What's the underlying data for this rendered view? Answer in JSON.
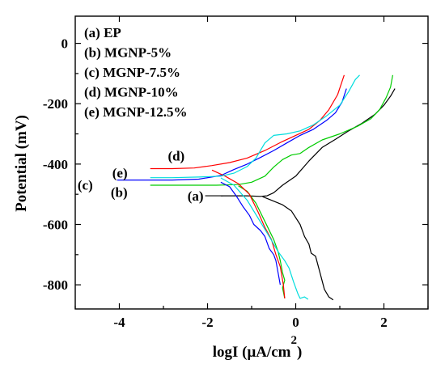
{
  "chart_data": {
    "type": "line",
    "title": "",
    "xlabel": "logI (μA/cm",
    "xlabel_superscript": "2",
    "xlabel_close": ")",
    "ylabel": "Potential (mV)",
    "xlim": [
      -5,
      3
    ],
    "ylim": [
      -880,
      90
    ],
    "x_ticks": [
      {
        "value": -4,
        "label": "-4"
      },
      {
        "value": -2,
        "label": "-2"
      },
      {
        "value": 0,
        "label": "0"
      },
      {
        "value": 2,
        "label": "2"
      }
    ],
    "y_ticks": [
      {
        "value": 0,
        "label": "0"
      },
      {
        "value": -200,
        "label": "-200"
      },
      {
        "value": -400,
        "label": "-400"
      },
      {
        "value": -600,
        "label": "-600"
      },
      {
        "value": -800,
        "label": "-800"
      }
    ],
    "grid": false,
    "legend_position": "top-left",
    "legend": [
      "(a) EP",
      "(b) MGNP-5%",
      "(c) MGNP-7.5%",
      "(d) MGNP-10%",
      "(e) MGNP-12.5%"
    ],
    "series": [
      {
        "label": "(a)",
        "color": "#000000",
        "points": [
          [
            -1.7,
            -505
          ],
          [
            -1.4,
            -505
          ],
          [
            -1.1,
            -505
          ],
          [
            -0.8,
            -507
          ],
          [
            -0.65,
            -505
          ],
          [
            -0.5,
            -495
          ],
          [
            -0.3,
            -470
          ],
          [
            0.0,
            -440
          ],
          [
            0.3,
            -390
          ],
          [
            0.6,
            -345
          ],
          [
            0.9,
            -318
          ],
          [
            1.2,
            -290
          ],
          [
            1.5,
            -265
          ],
          [
            1.8,
            -235
          ],
          [
            2.0,
            -205
          ],
          [
            2.15,
            -175
          ],
          [
            2.25,
            -150
          ]
        ],
        "points_cathodic": [
          [
            -0.75,
            -508
          ],
          [
            -0.55,
            -520
          ],
          [
            -0.3,
            -535
          ],
          [
            -0.1,
            -555
          ],
          [
            0.1,
            -600
          ],
          [
            0.2,
            -640
          ],
          [
            0.3,
            -665
          ],
          [
            0.35,
            -695
          ],
          [
            0.45,
            -705
          ],
          [
            0.55,
            -760
          ],
          [
            0.65,
            -815
          ],
          [
            0.75,
            -840
          ],
          [
            0.85,
            -850
          ]
        ]
      },
      {
        "label": "(b)",
        "color": "#00cc00",
        "points": [
          [
            -3.3,
            -470
          ],
          [
            -2.8,
            -470
          ],
          [
            -2.2,
            -470
          ],
          [
            -1.8,
            -470
          ],
          [
            -1.3,
            -468
          ],
          [
            -1.0,
            -460
          ],
          [
            -0.7,
            -440
          ],
          [
            -0.5,
            -410
          ],
          [
            -0.3,
            -385
          ],
          [
            -0.1,
            -370
          ],
          [
            0.1,
            -365
          ],
          [
            0.3,
            -345
          ],
          [
            0.6,
            -320
          ],
          [
            1.0,
            -300
          ],
          [
            1.4,
            -275
          ],
          [
            1.7,
            -250
          ],
          [
            1.9,
            -220
          ],
          [
            2.05,
            -180
          ],
          [
            2.15,
            -145
          ],
          [
            2.2,
            -105
          ]
        ],
        "points_cathodic": [
          [
            -1.3,
            -472
          ],
          [
            -1.1,
            -490
          ],
          [
            -0.9,
            -530
          ],
          [
            -0.7,
            -590
          ],
          [
            -0.5,
            -650
          ],
          [
            -0.4,
            -690
          ],
          [
            -0.35,
            -720
          ],
          [
            -0.3,
            -760
          ],
          [
            -0.25,
            -785
          ],
          [
            -0.3,
            -810
          ],
          [
            -0.25,
            -845
          ]
        ]
      },
      {
        "label": "(c)",
        "color": "#0000ff",
        "points": [
          [
            -4.05,
            -453
          ],
          [
            -3.5,
            -453
          ],
          [
            -2.8,
            -453
          ],
          [
            -2.2,
            -450
          ],
          [
            -1.7,
            -438
          ],
          [
            -1.4,
            -418
          ],
          [
            -1.1,
            -400
          ],
          [
            -0.8,
            -378
          ],
          [
            -0.5,
            -355
          ],
          [
            -0.2,
            -330
          ],
          [
            0.1,
            -305
          ],
          [
            0.4,
            -285
          ],
          [
            0.7,
            -255
          ],
          [
            0.9,
            -230
          ],
          [
            1.05,
            -195
          ],
          [
            1.15,
            -150
          ]
        ],
        "points_cathodic": [
          [
            -1.7,
            -460
          ],
          [
            -1.5,
            -475
          ],
          [
            -1.35,
            -505
          ],
          [
            -1.2,
            -540
          ],
          [
            -1.05,
            -570
          ],
          [
            -0.95,
            -600
          ],
          [
            -0.8,
            -620
          ],
          [
            -0.7,
            -640
          ],
          [
            -0.6,
            -680
          ],
          [
            -0.5,
            -700
          ],
          [
            -0.45,
            -720
          ],
          [
            -0.4,
            -760
          ],
          [
            -0.35,
            -800
          ]
        ]
      },
      {
        "label": "(d)",
        "color": "#ff0000",
        "points": [
          [
            -3.3,
            -415
          ],
          [
            -2.8,
            -415
          ],
          [
            -2.3,
            -413
          ],
          [
            -1.9,
            -405
          ],
          [
            -1.5,
            -395
          ],
          [
            -1.1,
            -380
          ],
          [
            -0.7,
            -355
          ],
          [
            -0.3,
            -325
          ],
          [
            0.0,
            -305
          ],
          [
            0.3,
            -285
          ],
          [
            0.55,
            -255
          ],
          [
            0.75,
            -220
          ],
          [
            0.95,
            -170
          ],
          [
            1.1,
            -105
          ]
        ],
        "points_cathodic": [
          [
            -1.9,
            -420
          ],
          [
            -1.6,
            -440
          ],
          [
            -1.3,
            -465
          ],
          [
            -1.05,
            -500
          ],
          [
            -0.85,
            -560
          ],
          [
            -0.7,
            -610
          ],
          [
            -0.55,
            -650
          ],
          [
            -0.45,
            -700
          ],
          [
            -0.35,
            -740
          ],
          [
            -0.28,
            -800
          ],
          [
            -0.25,
            -845
          ]
        ]
      },
      {
        "label": "(e)",
        "color": "#00dddd",
        "points": [
          [
            -3.3,
            -445
          ],
          [
            -2.8,
            -445
          ],
          [
            -2.2,
            -443
          ],
          [
            -1.7,
            -440
          ],
          [
            -1.4,
            -430
          ],
          [
            -1.1,
            -408
          ],
          [
            -0.9,
            -380
          ],
          [
            -0.7,
            -330
          ],
          [
            -0.5,
            -305
          ],
          [
            -0.2,
            -300
          ],
          [
            0.1,
            -290
          ],
          [
            0.4,
            -270
          ],
          [
            0.7,
            -240
          ],
          [
            1.0,
            -205
          ],
          [
            1.2,
            -160
          ],
          [
            1.35,
            -120
          ],
          [
            1.45,
            -105
          ]
        ],
        "points_cathodic": [
          [
            -1.7,
            -446
          ],
          [
            -1.4,
            -470
          ],
          [
            -1.1,
            -520
          ],
          [
            -0.85,
            -580
          ],
          [
            -0.6,
            -640
          ],
          [
            -0.4,
            -690
          ],
          [
            -0.25,
            -720
          ],
          [
            -0.15,
            -745
          ],
          [
            -0.05,
            -790
          ],
          [
            0.05,
            -830
          ],
          [
            0.1,
            -845
          ],
          [
            0.2,
            -840
          ],
          [
            0.28,
            -848
          ]
        ]
      }
    ],
    "annotations": [
      {
        "text": "(a)",
        "series": 0,
        "x": -1.65,
        "y": -505
      },
      {
        "text": "(b)",
        "series": 1,
        "x": -3.3,
        "y": -472
      },
      {
        "text": "(c)",
        "series": 2,
        "x": -4.05,
        "y": -453
      },
      {
        "text": "(d)",
        "series": 3,
        "x": -2.9,
        "y": -415
      },
      {
        "text": "(e)",
        "series": 4,
        "x": -3.3,
        "y": -445
      }
    ]
  }
}
